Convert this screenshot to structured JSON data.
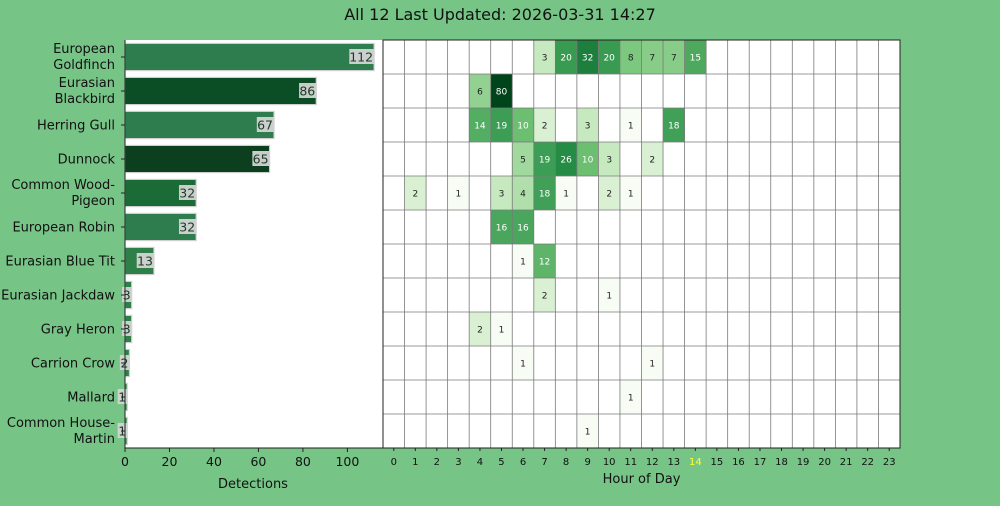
{
  "title": "All 12 Last Updated: 2026-03-31 14:27",
  "chart_data": [
    {
      "type": "bar",
      "orientation": "horizontal",
      "categories": [
        "European Goldfinch",
        "Eurasian Blackbird",
        "Herring Gull",
        "Dunnock",
        "Common Wood-Pigeon",
        "European Robin",
        "Eurasian Blue Tit",
        "Eurasian Jackdaw",
        "Gray Heron",
        "Carrion Crow",
        "Mallard",
        "Common House-Martin"
      ],
      "category_labels": [
        [
          "European",
          "Goldfinch"
        ],
        [
          "Eurasian",
          "Blackbird"
        ],
        [
          "Herring Gull"
        ],
        [
          "Dunnock"
        ],
        [
          "Common Wood-",
          "Pigeon"
        ],
        [
          "European Robin"
        ],
        [
          "Eurasian Blue Tit"
        ],
        [
          "Eurasian Jackdaw"
        ],
        [
          "Gray Heron"
        ],
        [
          "Carrion Crow"
        ],
        [
          "Mallard"
        ],
        [
          "Common House-",
          "Martin"
        ]
      ],
      "values": [
        112,
        86,
        67,
        65,
        32,
        32,
        13,
        3,
        3,
        2,
        1,
        1
      ],
      "bar_colors": [
        "#2e7d4f",
        "#0b4d24",
        "#2e7d4f",
        "#0b3f1d",
        "#1a6b35",
        "#2e7d4f",
        "#2e8048",
        "#2e8048",
        "#2e8048",
        "#2e8048",
        "#2e8048",
        "#2e8048"
      ],
      "xlabel": "Detections",
      "xticks": [
        0,
        20,
        40,
        60,
        80,
        100
      ],
      "xlim": [
        0,
        116
      ]
    },
    {
      "type": "heatmap",
      "xlabel": "Hour of Day",
      "x": [
        0,
        1,
        2,
        3,
        4,
        5,
        6,
        7,
        8,
        9,
        10,
        11,
        12,
        13,
        14,
        15,
        16,
        17,
        18,
        19,
        20,
        21,
        22,
        23
      ],
      "highlight_hour": 14,
      "highlight_color": "#ffff33",
      "rows": [
        {
          "species": "European Goldfinch",
          "cells": [
            {
              "hour": 7,
              "value": 3
            },
            {
              "hour": 8,
              "value": 20
            },
            {
              "hour": 9,
              "value": 32
            },
            {
              "hour": 10,
              "value": 20
            },
            {
              "hour": 11,
              "value": 8
            },
            {
              "hour": 12,
              "value": 7
            },
            {
              "hour": 13,
              "value": 7
            },
            {
              "hour": 14,
              "value": 15
            }
          ]
        },
        {
          "species": "Eurasian Blackbird",
          "cells": [
            {
              "hour": 4,
              "value": 6
            },
            {
              "hour": 5,
              "value": 80
            }
          ]
        },
        {
          "species": "Herring Gull",
          "cells": [
            {
              "hour": 4,
              "value": 14
            },
            {
              "hour": 5,
              "value": 19
            },
            {
              "hour": 6,
              "value": 10
            },
            {
              "hour": 7,
              "value": 2
            },
            {
              "hour": 9,
              "value": 3
            },
            {
              "hour": 11,
              "value": 1
            },
            {
              "hour": 13,
              "value": 18
            }
          ]
        },
        {
          "species": "Dunnock",
          "cells": [
            {
              "hour": 6,
              "value": 5
            },
            {
              "hour": 7,
              "value": 19
            },
            {
              "hour": 8,
              "value": 26
            },
            {
              "hour": 9,
              "value": 10
            },
            {
              "hour": 10,
              "value": 3
            },
            {
              "hour": 12,
              "value": 2
            }
          ]
        },
        {
          "species": "Common Wood-Pigeon",
          "cells": [
            {
              "hour": 1,
              "value": 2
            },
            {
              "hour": 3,
              "value": 1
            },
            {
              "hour": 5,
              "value": 3
            },
            {
              "hour": 6,
              "value": 4
            },
            {
              "hour": 7,
              "value": 18
            },
            {
              "hour": 8,
              "value": 1
            },
            {
              "hour": 10,
              "value": 2
            },
            {
              "hour": 11,
              "value": 1
            }
          ]
        },
        {
          "species": "European Robin",
          "cells": [
            {
              "hour": 5,
              "value": 16
            },
            {
              "hour": 6,
              "value": 16
            }
          ]
        },
        {
          "species": "Eurasian Blue Tit",
          "cells": [
            {
              "hour": 6,
              "value": 1
            },
            {
              "hour": 7,
              "value": 12
            }
          ]
        },
        {
          "species": "Eurasian Jackdaw",
          "cells": [
            {
              "hour": 7,
              "value": 2
            },
            {
              "hour": 10,
              "value": 1
            }
          ]
        },
        {
          "species": "Gray Heron",
          "cells": [
            {
              "hour": 4,
              "value": 2
            },
            {
              "hour": 5,
              "value": 1
            }
          ]
        },
        {
          "species": "Carrion Crow",
          "cells": [
            {
              "hour": 6,
              "value": 1
            },
            {
              "hour": 12,
              "value": 1
            }
          ]
        },
        {
          "species": "Mallard",
          "cells": [
            {
              "hour": 11,
              "value": 1
            }
          ]
        },
        {
          "species": "Common House-Martin",
          "cells": [
            {
              "hour": 9,
              "value": 1
            }
          ]
        }
      ]
    }
  ]
}
